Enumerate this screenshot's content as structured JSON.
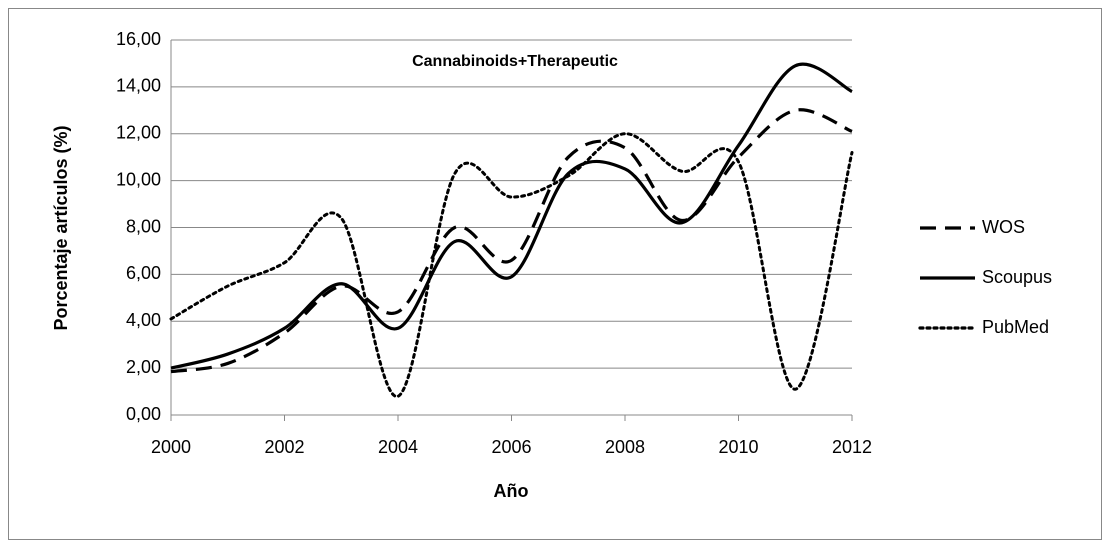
{
  "chart_data": {
    "type": "line",
    "title": "Cannabinoids+Therapeutic",
    "xlabel": "Año",
    "ylabel": "Porcentaje artículos (%)",
    "x": [
      2000,
      2001,
      2002,
      2003,
      2004,
      2005,
      2006,
      2007,
      2008,
      2009,
      2010,
      2011,
      2012
    ],
    "series": [
      {
        "name": "WOS",
        "color": "#000000",
        "dash": "dashed",
        "values": [
          1.85,
          2.2,
          3.5,
          5.5,
          4.4,
          8.0,
          6.6,
          11.0,
          11.4,
          8.3,
          11.0,
          13.0,
          12.1
        ]
      },
      {
        "name": "Scoupus",
        "color": "#000000",
        "dash": "solid",
        "values": [
          2.0,
          2.6,
          3.7,
          5.6,
          3.7,
          7.4,
          5.9,
          10.3,
          10.5,
          8.2,
          11.5,
          14.9,
          13.8
        ]
      },
      {
        "name": "PubMed",
        "color": "#000000",
        "dash": "dotted",
        "values": [
          4.1,
          5.5,
          6.5,
          8.4,
          0.8,
          10.3,
          9.3,
          10.2,
          12.0,
          10.4,
          10.8,
          1.1,
          11.2
        ]
      }
    ],
    "xlim": [
      2000,
      2012
    ],
    "xticks": [
      2000,
      2002,
      2004,
      2006,
      2008,
      2010,
      2012
    ],
    "ylim": [
      0,
      16
    ],
    "yticks": [
      {
        "value": 0,
        "label": "0,00"
      },
      {
        "value": 2,
        "label": "2,00"
      },
      {
        "value": 4,
        "label": "4,00"
      },
      {
        "value": 6,
        "label": "6,00"
      },
      {
        "value": 8,
        "label": "8,00"
      },
      {
        "value": 10,
        "label": "10,00"
      },
      {
        "value": 12,
        "label": "12,00"
      },
      {
        "value": 14,
        "label": "14,00"
      },
      {
        "value": 16,
        "label": "16,00"
      }
    ],
    "grid": true,
    "legend": "right"
  }
}
